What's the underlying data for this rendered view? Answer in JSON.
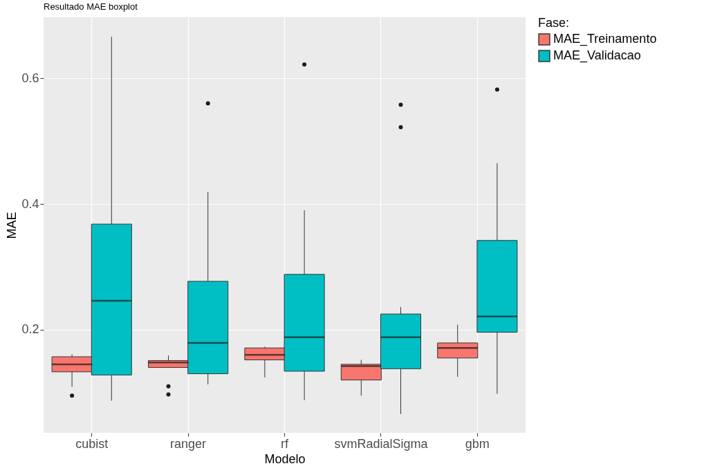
{
  "chart_data": {
    "type": "box",
    "title": "Resultado MAE boxplot",
    "xlabel": "Modelo",
    "ylabel": "MAE",
    "legend_title": "Fase:",
    "categories": [
      "cubist",
      "ranger",
      "rf",
      "svmRadialSigma",
      "gbm"
    ],
    "ylim": [
      0.036,
      0.697
    ],
    "yticks": [
      0.2,
      0.4,
      0.6
    ],
    "grid": true,
    "legend": "right",
    "series": [
      {
        "name": "MAE_Treinamento",
        "color": "#f8766d",
        "boxes": [
          {
            "low": 0.109,
            "q1": 0.133,
            "median": 0.145,
            "q3": 0.157,
            "high": 0.161,
            "outliers": [
              0.095
            ]
          },
          {
            "low": 0.14,
            "q1": 0.14,
            "median": 0.148,
            "q3": 0.151,
            "high": 0.159,
            "outliers": [
              0.11,
              0.097
            ]
          },
          {
            "low": 0.124,
            "q1": 0.152,
            "median": 0.16,
            "q3": 0.171,
            "high": 0.173
          },
          {
            "low": 0.095,
            "q1": 0.12,
            "median": 0.142,
            "q3": 0.145,
            "high": 0.152
          },
          {
            "low": 0.125,
            "q1": 0.155,
            "median": 0.171,
            "q3": 0.179,
            "high": 0.208
          }
        ]
      },
      {
        "name": "MAE_Validacao",
        "color": "#00bfc4",
        "boxes": [
          {
            "low": 0.087,
            "q1": 0.128,
            "median": 0.246,
            "q3": 0.368,
            "high": 0.666
          },
          {
            "low": 0.113,
            "q1": 0.13,
            "median": 0.179,
            "q3": 0.277,
            "high": 0.419,
            "outliers": [
              0.56
            ]
          },
          {
            "low": 0.088,
            "q1": 0.134,
            "median": 0.188,
            "q3": 0.288,
            "high": 0.39,
            "outliers": [
              0.622
            ]
          },
          {
            "low": 0.066,
            "q1": 0.138,
            "median": 0.188,
            "q3": 0.225,
            "high": 0.236,
            "outliers": [
              0.558,
              0.522
            ]
          },
          {
            "low": 0.098,
            "q1": 0.196,
            "median": 0.221,
            "q3": 0.342,
            "high": 0.465,
            "outliers": [
              0.582
            ]
          }
        ]
      }
    ]
  }
}
